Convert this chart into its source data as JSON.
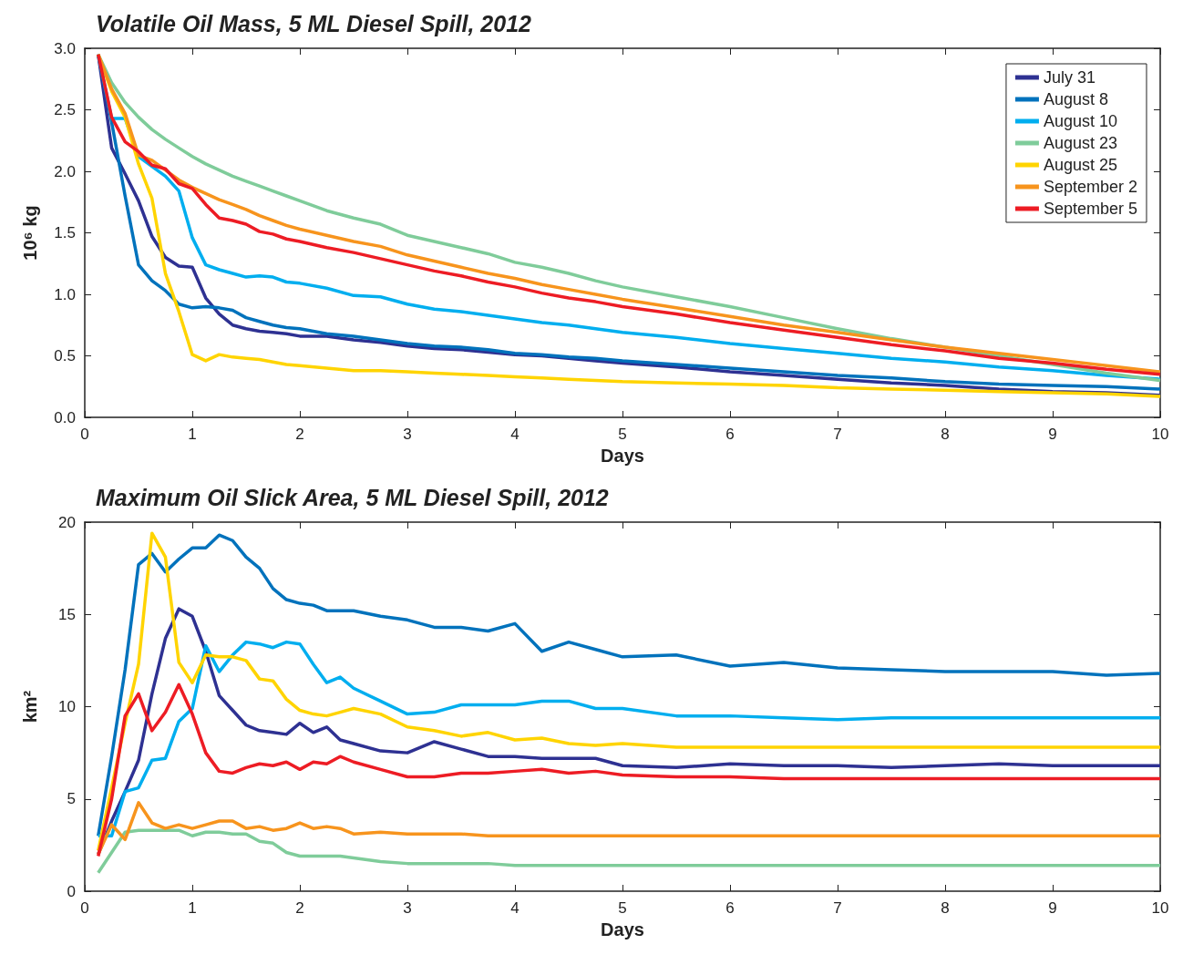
{
  "chart_data": [
    {
      "type": "line",
      "title": "Volatile Oil Mass, 5 ML Diesel Spill, 2012",
      "xlabel": "Days",
      "ylabel": "10⁶ kg",
      "legend": "top right",
      "grid": false,
      "marker": "none",
      "line_style": "solid",
      "xlim": [
        0,
        10
      ],
      "xticks": [
        0,
        1,
        2,
        3,
        4,
        5,
        6,
        7,
        8,
        9,
        10
      ],
      "ylim": [
        0,
        3
      ],
      "yticks": [
        {
          "value": 0,
          "label": "0.0"
        },
        {
          "value": 0.5,
          "label": "0.5"
        },
        {
          "value": 1,
          "label": "1.0"
        },
        {
          "value": 1.5,
          "label": "1.5"
        },
        {
          "value": 2,
          "label": "2.0"
        },
        {
          "value": 2.5,
          "label": "2.5"
        },
        {
          "value": 3,
          "label": "3.0"
        }
      ],
      "x": [
        0.125,
        0.25,
        0.375,
        0.5,
        0.625,
        0.75,
        0.875,
        1,
        1.125,
        1.25,
        1.375,
        1.5,
        1.625,
        1.75,
        1.875,
        2,
        2.25,
        2.5,
        2.75,
        3,
        3.25,
        3.5,
        3.75,
        4,
        4.25,
        4.5,
        4.75,
        5,
        5.5,
        6,
        6.5,
        7,
        7.5,
        8,
        8.5,
        9,
        9.5,
        10
      ],
      "series": [
        {
          "name": "July 31",
          "color": "#2e3192",
          "values": [
            2.95,
            2.19,
            1.98,
            1.76,
            1.47,
            1.3,
            1.23,
            1.22,
            0.97,
            0.84,
            0.75,
            0.72,
            0.7,
            0.69,
            0.68,
            0.66,
            0.66,
            0.63,
            0.61,
            0.58,
            0.56,
            0.55,
            0.53,
            0.51,
            0.5,
            0.48,
            0.46,
            0.44,
            0.41,
            0.37,
            0.34,
            0.31,
            0.28,
            0.26,
            0.23,
            0.21,
            0.2,
            0.18
          ]
        },
        {
          "name": "August 8",
          "color": "#0072bc",
          "values": [
            2.95,
            2.4,
            1.8,
            1.24,
            1.11,
            1.03,
            0.92,
            0.89,
            0.9,
            0.89,
            0.87,
            0.81,
            0.78,
            0.75,
            0.73,
            0.72,
            0.68,
            0.66,
            0.63,
            0.6,
            0.58,
            0.57,
            0.55,
            0.52,
            0.51,
            0.49,
            0.48,
            0.46,
            0.43,
            0.4,
            0.37,
            0.34,
            0.32,
            0.29,
            0.27,
            0.26,
            0.25,
            0.23
          ]
        },
        {
          "name": "August 10",
          "color": "#00aeef",
          "values": [
            2.95,
            2.43,
            2.43,
            2.12,
            2.04,
            1.96,
            1.84,
            1.46,
            1.24,
            1.2,
            1.17,
            1.14,
            1.15,
            1.14,
            1.1,
            1.09,
            1.05,
            0.99,
            0.98,
            0.92,
            0.88,
            0.86,
            0.83,
            0.8,
            0.77,
            0.75,
            0.72,
            0.69,
            0.65,
            0.6,
            0.56,
            0.52,
            0.48,
            0.45,
            0.41,
            0.38,
            0.34,
            0.31
          ]
        },
        {
          "name": "August 23",
          "color": "#7fcc9a",
          "values": [
            2.95,
            2.72,
            2.56,
            2.44,
            2.34,
            2.26,
            2.19,
            2.12,
            2.06,
            2.01,
            1.96,
            1.92,
            1.88,
            1.84,
            1.8,
            1.76,
            1.68,
            1.62,
            1.57,
            1.48,
            1.43,
            1.38,
            1.33,
            1.26,
            1.22,
            1.17,
            1.11,
            1.06,
            0.98,
            0.9,
            0.81,
            0.72,
            0.64,
            0.57,
            0.5,
            0.43,
            0.36,
            0.3
          ]
        },
        {
          "name": "August 25",
          "color": "#ffd400",
          "values": [
            2.95,
            2.65,
            2.44,
            2.06,
            1.78,
            1.17,
            0.86,
            0.51,
            0.46,
            0.51,
            0.49,
            0.48,
            0.47,
            0.45,
            0.43,
            0.42,
            0.4,
            0.38,
            0.38,
            0.37,
            0.36,
            0.35,
            0.34,
            0.33,
            0.32,
            0.31,
            0.3,
            0.29,
            0.28,
            0.27,
            0.26,
            0.24,
            0.23,
            0.22,
            0.21,
            0.2,
            0.19,
            0.17
          ]
        },
        {
          "name": "September 2",
          "color": "#f7941d",
          "values": [
            2.95,
            2.67,
            2.47,
            2.13,
            2.09,
            2.01,
            1.93,
            1.87,
            1.82,
            1.77,
            1.73,
            1.69,
            1.64,
            1.6,
            1.56,
            1.53,
            1.48,
            1.43,
            1.39,
            1.32,
            1.27,
            1.22,
            1.17,
            1.13,
            1.08,
            1.04,
            1.0,
            0.96,
            0.89,
            0.82,
            0.75,
            0.69,
            0.63,
            0.57,
            0.52,
            0.47,
            0.42,
            0.37
          ]
        },
        {
          "name": "September 5",
          "color": "#ed1c24",
          "values": [
            2.95,
            2.44,
            2.24,
            2.16,
            2.05,
            2.02,
            1.9,
            1.86,
            1.73,
            1.62,
            1.6,
            1.57,
            1.51,
            1.49,
            1.45,
            1.43,
            1.38,
            1.34,
            1.29,
            1.24,
            1.19,
            1.15,
            1.1,
            1.06,
            1.01,
            0.97,
            0.94,
            0.9,
            0.84,
            0.77,
            0.71,
            0.65,
            0.59,
            0.54,
            0.48,
            0.44,
            0.39,
            0.35
          ]
        }
      ]
    },
    {
      "type": "line",
      "title": "Maximum Oil Slick Area, 5 ML Diesel Spill, 2012",
      "xlabel": "Days",
      "ylabel": "km²",
      "legend": false,
      "grid": false,
      "marker": "none",
      "line_style": "solid",
      "xlim": [
        0,
        10
      ],
      "xticks": [
        0,
        1,
        2,
        3,
        4,
        5,
        6,
        7,
        8,
        9,
        10
      ],
      "ylim": [
        0,
        20
      ],
      "yticks": [
        0,
        5,
        10,
        15,
        20
      ],
      "x": [
        0.125,
        0.25,
        0.375,
        0.5,
        0.625,
        0.75,
        0.875,
        1,
        1.125,
        1.25,
        1.375,
        1.5,
        1.625,
        1.75,
        1.875,
        2,
        2.125,
        2.25,
        2.375,
        2.5,
        2.75,
        3,
        3.25,
        3.5,
        3.75,
        4,
        4.25,
        4.5,
        4.75,
        5,
        5.5,
        6,
        6.5,
        7,
        7.5,
        8,
        8.5,
        9,
        9.5,
        10
      ],
      "series": [
        {
          "color": "#2e3192",
          "values": [
            2.0,
            3.8,
            5.4,
            7.1,
            10.7,
            13.7,
            15.3,
            14.9,
            13.0,
            10.6,
            9.8,
            9.0,
            8.7,
            8.6,
            8.5,
            9.1,
            8.6,
            8.9,
            8.2,
            8.0,
            7.6,
            7.5,
            8.1,
            7.7,
            7.3,
            7.3,
            7.2,
            7.2,
            7.2,
            6.8,
            6.7,
            6.9,
            6.8,
            6.8,
            6.7,
            6.8,
            6.9,
            6.8,
            6.8,
            6.8
          ]
        },
        {
          "color": "#0072bc",
          "values": [
            3.0,
            7.3,
            12.0,
            17.7,
            18.3,
            17.3,
            18.0,
            18.6,
            18.6,
            19.3,
            19.0,
            18.1,
            17.5,
            16.4,
            15.8,
            15.6,
            15.5,
            15.2,
            15.2,
            15.2,
            14.9,
            14.7,
            14.3,
            14.3,
            14.1,
            14.5,
            13.0,
            13.5,
            13.1,
            12.7,
            12.8,
            12.2,
            12.4,
            12.1,
            12.0,
            11.9,
            11.9,
            11.9,
            11.7,
            11.8
          ]
        },
        {
          "color": "#00aeef",
          "values": [
            3.0,
            3.0,
            5.4,
            5.6,
            7.1,
            7.2,
            9.2,
            9.9,
            13.3,
            11.9,
            12.8,
            13.5,
            13.4,
            13.2,
            13.5,
            13.4,
            12.3,
            11.3,
            11.6,
            11.0,
            10.3,
            9.6,
            9.7,
            10.1,
            10.1,
            10.1,
            10.3,
            10.3,
            9.9,
            9.9,
            9.5,
            9.5,
            9.4,
            9.3,
            9.4,
            9.4,
            9.4,
            9.4,
            9.4,
            9.4
          ]
        },
        {
          "color": "#7fcc9a",
          "values": [
            1.0,
            2.1,
            3.2,
            3.3,
            3.3,
            3.3,
            3.3,
            3.0,
            3.2,
            3.2,
            3.1,
            3.1,
            2.7,
            2.6,
            2.1,
            1.9,
            1.9,
            1.9,
            1.9,
            1.8,
            1.6,
            1.5,
            1.5,
            1.5,
            1.5,
            1.4,
            1.4,
            1.4,
            1.4,
            1.4,
            1.4,
            1.4,
            1.4,
            1.4,
            1.4,
            1.4,
            1.4,
            1.4,
            1.4,
            1.4
          ]
        },
        {
          "color": "#ffd400",
          "values": [
            2.2,
            5.6,
            9.1,
            12.3,
            19.4,
            18.1,
            12.4,
            11.3,
            12.8,
            12.7,
            12.7,
            12.5,
            11.5,
            11.4,
            10.4,
            9.8,
            9.6,
            9.5,
            9.7,
            9.9,
            9.6,
            8.9,
            8.7,
            8.4,
            8.6,
            8.2,
            8.3,
            8.0,
            7.9,
            8.0,
            7.8,
            7.8,
            7.8,
            7.8,
            7.8,
            7.8,
            7.8,
            7.8,
            7.8,
            7.8
          ]
        },
        {
          "color": "#f7941d",
          "values": [
            2.0,
            3.6,
            2.8,
            4.8,
            3.7,
            3.4,
            3.6,
            3.4,
            3.6,
            3.8,
            3.8,
            3.4,
            3.5,
            3.3,
            3.4,
            3.7,
            3.4,
            3.5,
            3.4,
            3.1,
            3.2,
            3.1,
            3.1,
            3.1,
            3.0,
            3.0,
            3.0,
            3.0,
            3.0,
            3.0,
            3.0,
            3.0,
            3.0,
            3.0,
            3.0,
            3.0,
            3.0,
            3.0,
            3.0,
            3.0
          ]
        },
        {
          "color": "#ed1c24",
          "values": [
            1.9,
            5.0,
            9.5,
            10.7,
            8.7,
            9.7,
            11.2,
            9.6,
            7.5,
            6.5,
            6.4,
            6.7,
            6.9,
            6.8,
            7.0,
            6.6,
            7.0,
            6.9,
            7.3,
            7.0,
            6.6,
            6.2,
            6.2,
            6.4,
            6.4,
            6.5,
            6.6,
            6.4,
            6.5,
            6.3,
            6.2,
            6.2,
            6.1,
            6.1,
            6.1,
            6.1,
            6.1,
            6.1,
            6.1,
            6.1
          ]
        }
      ]
    }
  ]
}
